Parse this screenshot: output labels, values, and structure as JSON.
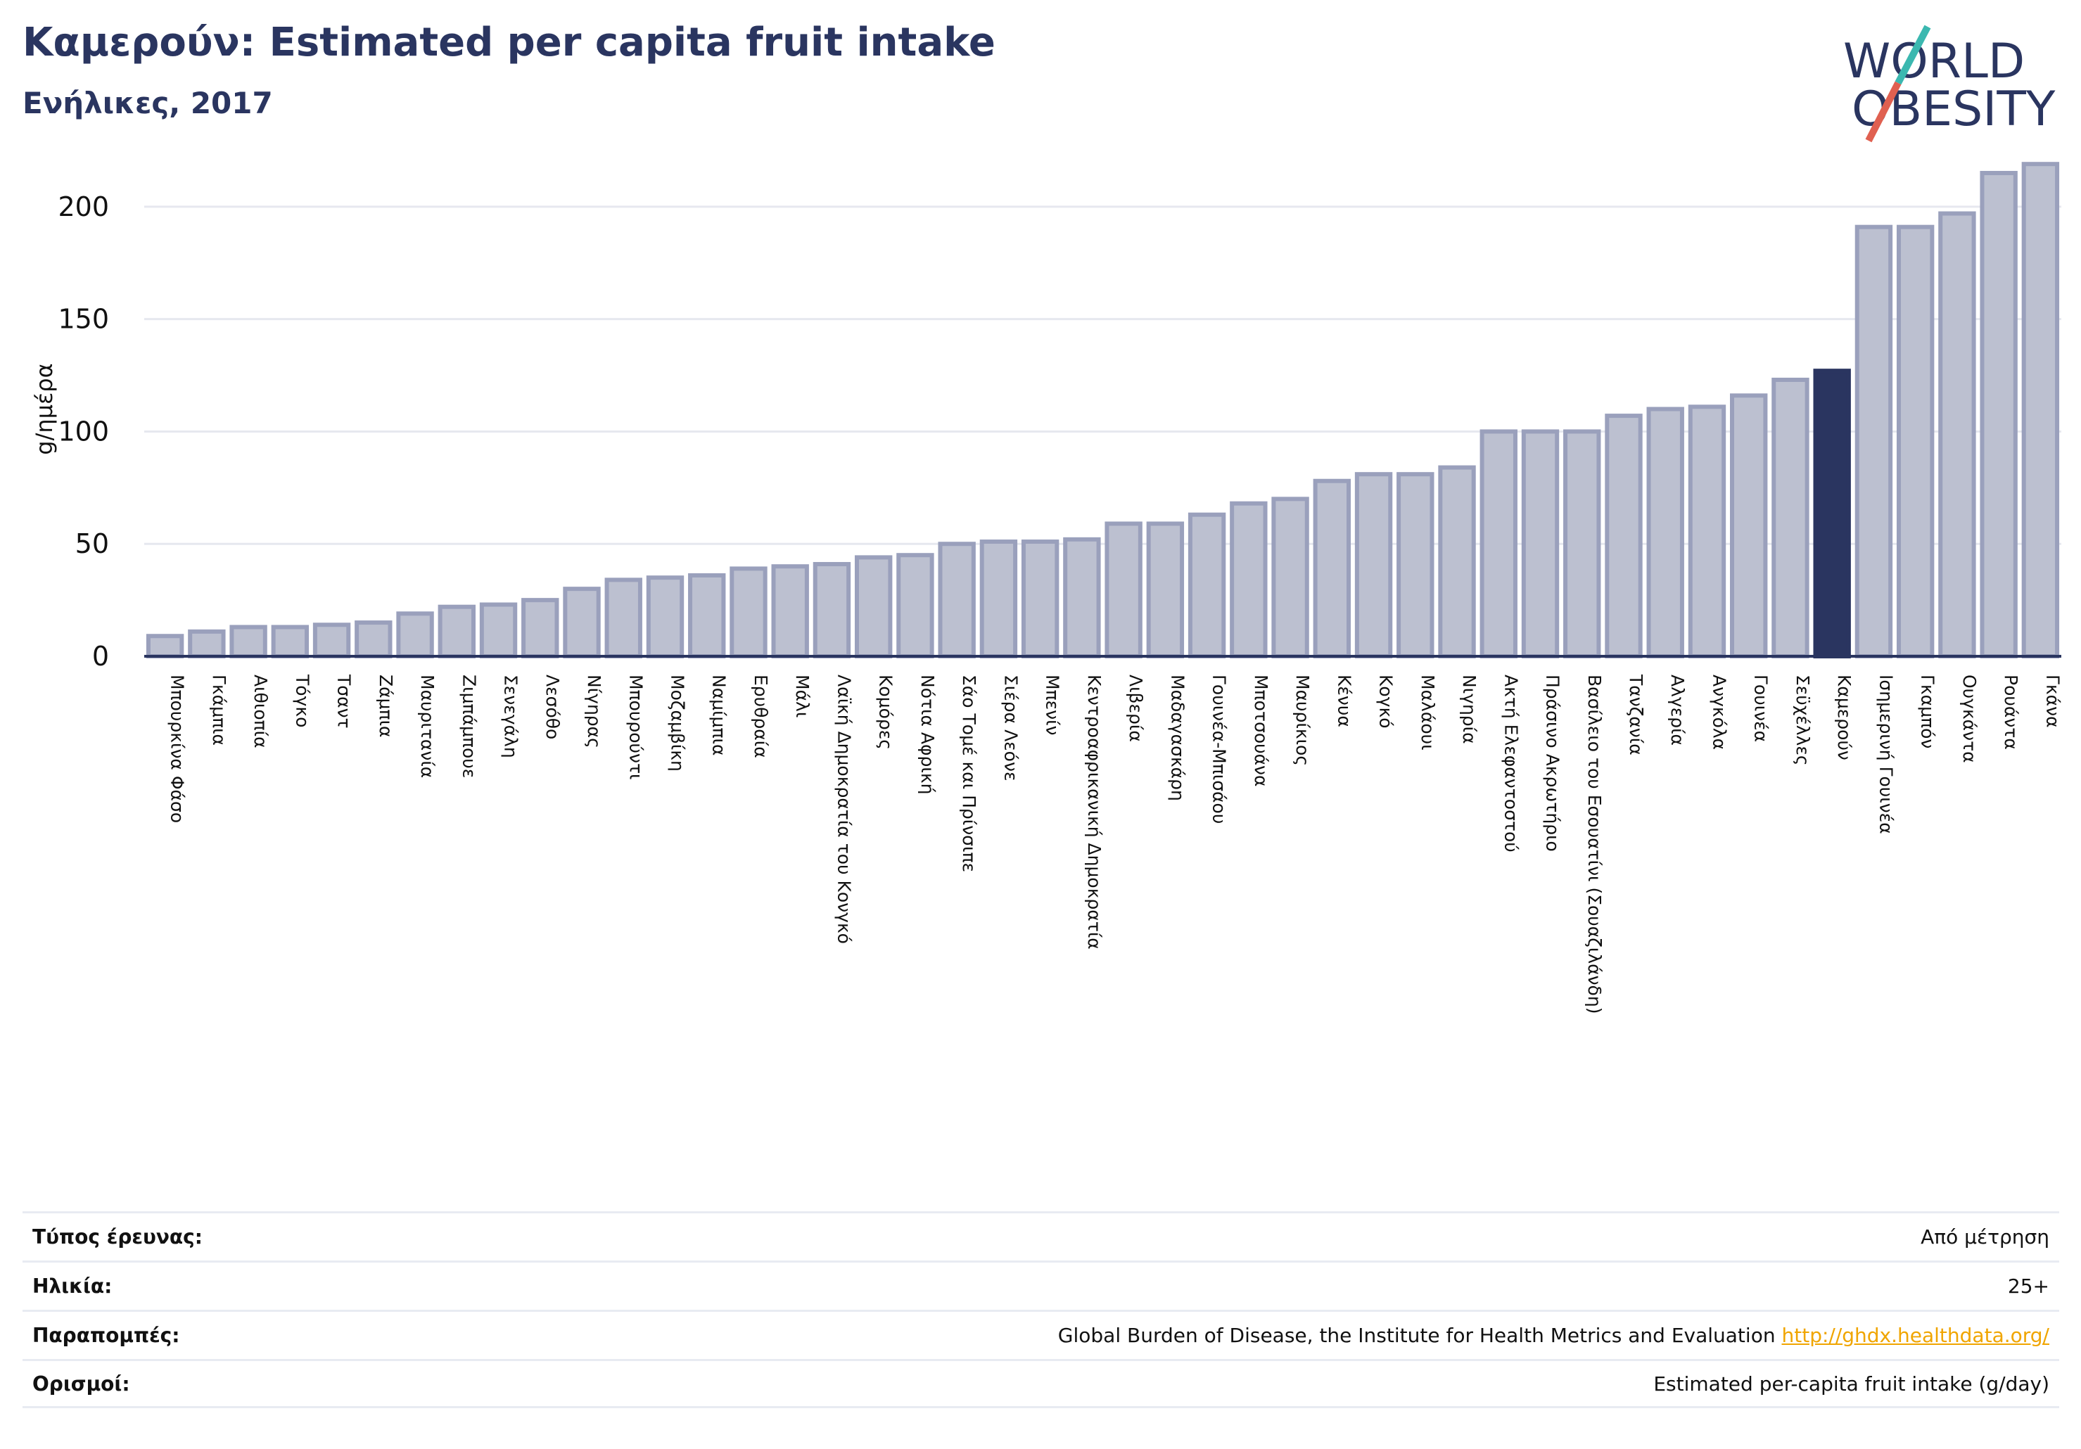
{
  "header": {
    "title": "Καμερούν: Estimated per capita fruit intake",
    "subtitle": "Ενήλικες, 2017"
  },
  "logo": {
    "line1": "WORLD",
    "line2": "OBESITY"
  },
  "colors": {
    "bar": "#bcc0d0",
    "bar_stroke": "#9aa0bc",
    "highlight": "#2a3560",
    "title": "#2a3560",
    "link": "#f0a500"
  },
  "chart_data": {
    "type": "bar",
    "ylabel": "g/ημέρα",
    "ylim": [
      0,
      220
    ],
    "yticks": [
      0,
      50,
      100,
      150,
      200
    ],
    "highlight": "Καμερούν",
    "categories": [
      "Μπουρκίνα Φάσο",
      "Γκάμπια",
      "Αιθιοπία",
      "Τόγκο",
      "Τσαντ",
      "Ζάμπια",
      "Μαυριτανία",
      "Ζιμπάμπουε",
      "Σενεγάλη",
      "Λεσόθο",
      "Νίγηρας",
      "Μπουρούντι",
      "Μοζαμβίκη",
      "Ναμίμπια",
      "Ερυθραία",
      "Μάλι",
      "Λαϊκή Δημοκρατία του Κονγκό",
      "Κομόρες",
      "Νότια Αφρική",
      "Σάο Τομέ και Πρίνσιπε",
      "Σιέρα Λεόνε",
      "Μπενίν",
      "Κεντροαφρικανική Δημοκρατία",
      "Λιβερία",
      "Μαδαγασκάρη",
      "Γουινέα-Μπισάου",
      "Μποτσουάνα",
      "Μαυρίκιος",
      "Κένυα",
      "Κογκό",
      "Μαλάουι",
      "Νιγηρία",
      "Ακτή Ελεφαντοστού",
      "Πράσινο Ακρωτήριο",
      "Βασίλειο του Εσουατίνι (Σουαζιλάνδη)",
      "Τανζανία",
      "Αλγερία",
      "Ανγκόλα",
      "Γουινέα",
      "Σεϋχέλλες",
      "Καμερούν",
      "Ισημερινή Γουινέα",
      "Γκαμπόν",
      "Ουγκάντα",
      "Ρουάντα",
      "Γκάνα"
    ],
    "values": [
      9,
      11,
      13,
      13,
      14,
      15,
      19,
      22,
      23,
      25,
      30,
      34,
      35,
      36,
      39,
      40,
      41,
      44,
      45,
      50,
      51,
      51,
      52,
      59,
      59,
      63,
      68,
      70,
      78,
      81,
      81,
      84,
      100,
      100,
      100,
      107,
      110,
      111,
      116,
      123,
      127,
      191,
      191,
      197,
      215,
      219
    ]
  },
  "meta": {
    "survey_label": "Τύπος έρευνας:",
    "survey_value": "Από μέτρηση",
    "age_label": "Ηλικία:",
    "age_value": "25+",
    "refs_label": "Παραπομπές:",
    "refs_value": "Global Burden of Disease, the Institute for Health Metrics and Evaluation",
    "refs_link": "http://ghdx.healthdata.org/",
    "defs_label": "Ορισμοί:",
    "defs_value": "Estimated per-capita fruit intake (g/day)"
  }
}
